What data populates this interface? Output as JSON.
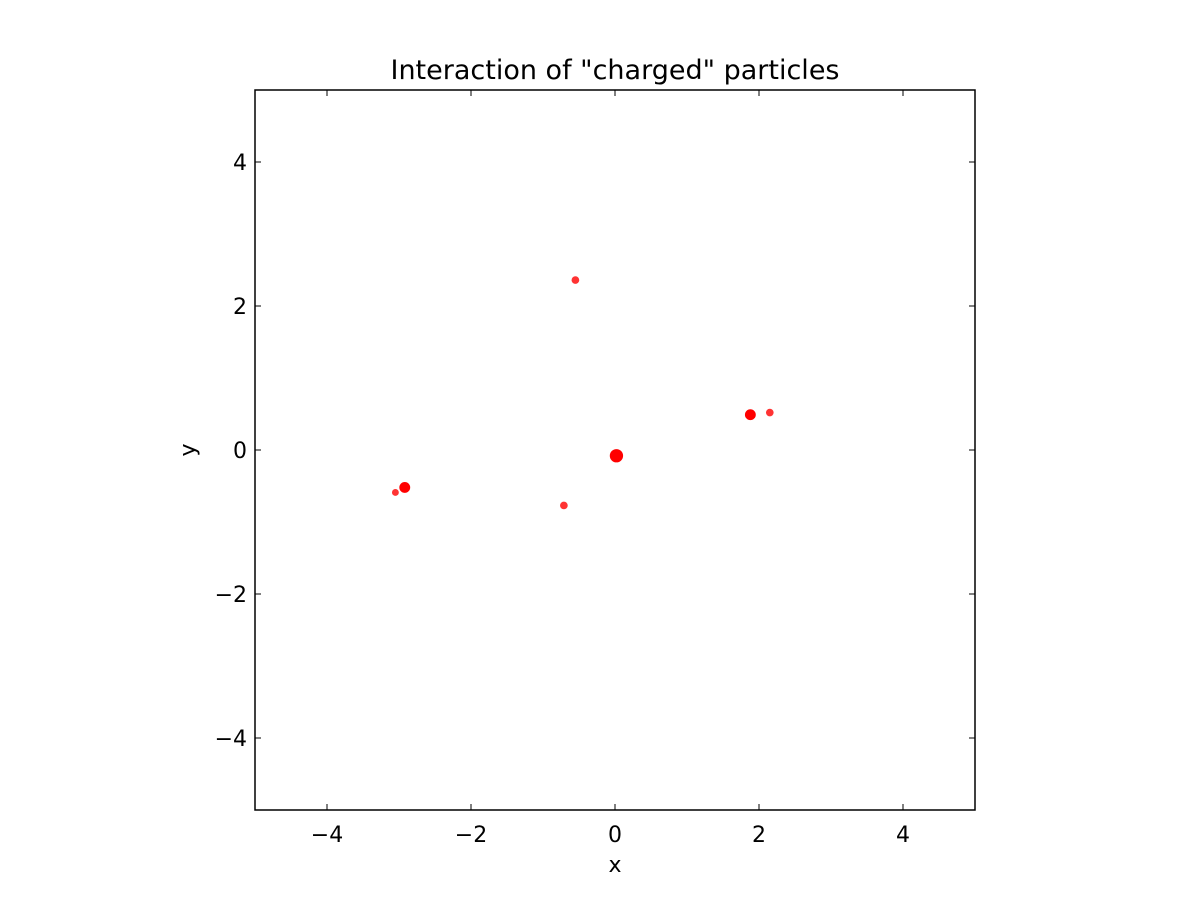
{
  "chart_data": {
    "type": "scatter",
    "title": "Interaction of \"charged\" particles",
    "xlabel": "x",
    "ylabel": "y",
    "xlim": [
      -5,
      5
    ],
    "ylim": [
      -5,
      5
    ],
    "xticks": [
      -4,
      -2,
      0,
      2,
      4
    ],
    "yticks": [
      -4,
      -2,
      0,
      2,
      4
    ],
    "xtick_labels": [
      "−4",
      "−2",
      "0",
      "2",
      "4"
    ],
    "ytick_labels": [
      "−4",
      "−2",
      "0",
      "2",
      "4"
    ],
    "grid": false,
    "legend": "none",
    "marker_color": "#ff0000",
    "series": [
      {
        "x": [
          0.02,
          1.88,
          -2.92,
          2.15,
          -0.55,
          -0.71,
          -3.05
        ],
        "y": [
          -0.08,
          0.49,
          -0.52,
          0.52,
          2.36,
          -0.77,
          -0.59
        ],
        "size": [
          3,
          2,
          2,
          1,
          1,
          1,
          0.8
        ],
        "opacity": [
          1,
          1,
          1,
          0.8,
          0.8,
          0.8,
          0.8
        ]
      }
    ]
  }
}
